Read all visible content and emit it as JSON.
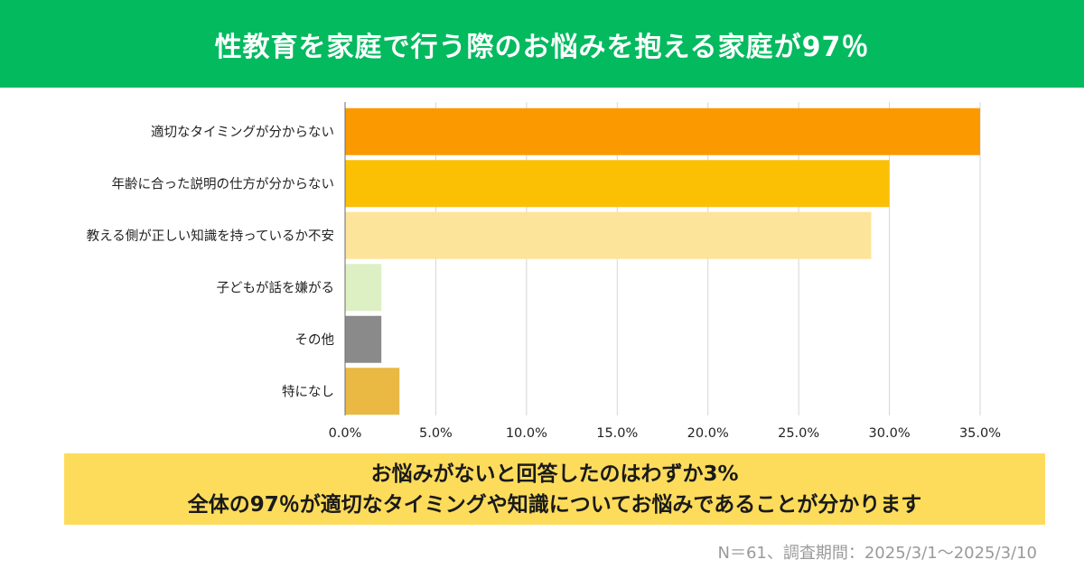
{
  "header": {
    "title": "性教育を家庭で行う際のお悩みを抱える家庭が97％"
  },
  "chart_data": {
    "type": "bar",
    "orientation": "horizontal",
    "title": "性教育を家庭で行う際のお悩みを抱える家庭が97％",
    "categories": [
      "適切なタイミングが分からない",
      "年齢に合った説明の仕方が分からない",
      "教える側が正しい知識を持っているか不安",
      "子どもが話を嫌がる",
      "その他",
      "特になし"
    ],
    "values": [
      35.0,
      30.0,
      29.0,
      2.0,
      2.0,
      3.0
    ],
    "colors": [
      "#fb9a00",
      "#fbbf04",
      "#fde49b",
      "#dcf0c4",
      "#8a8a8a",
      "#e9b944"
    ],
    "xlim": [
      0,
      35
    ],
    "xticks": [
      0,
      5,
      10,
      15,
      20,
      25,
      30,
      35
    ],
    "xtick_labels": [
      "0.0%",
      "5.0%",
      "10.0%",
      "15.0%",
      "20.0%",
      "25.0%",
      "30.0%",
      "35.0%"
    ],
    "grid": true,
    "xlabel": "",
    "ylabel": ""
  },
  "summary": {
    "line1": "お悩みがないと回答したのはわずか3%",
    "line2": "全体の97％が適切なタイミングや知識についてお悩みであることが分かります"
  },
  "footnote": "N＝61、調査期間：2025/3/1～2025/3/10"
}
